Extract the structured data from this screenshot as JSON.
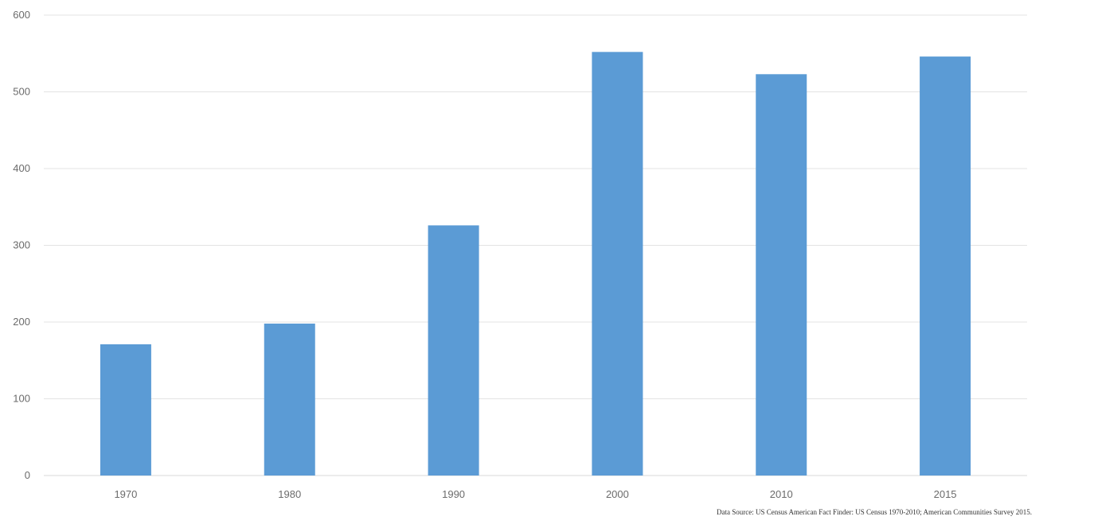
{
  "chart_data": {
    "type": "bar",
    "title": "",
    "xlabel": "",
    "ylabel": "",
    "categories": [
      "1970",
      "1980",
      "1990",
      "2000",
      "2010",
      "2015"
    ],
    "values": [
      171,
      198,
      326,
      552,
      523,
      546
    ],
    "ylim": [
      0,
      600
    ],
    "yticks": [
      0,
      100,
      200,
      300,
      400,
      500,
      600
    ],
    "grid": true,
    "legend": "none",
    "bar_color": "#5b9bd5"
  },
  "source_note": "Data Source: US Census American Fact Finder: US Census 1970-2010; American Communities Survey 2015."
}
